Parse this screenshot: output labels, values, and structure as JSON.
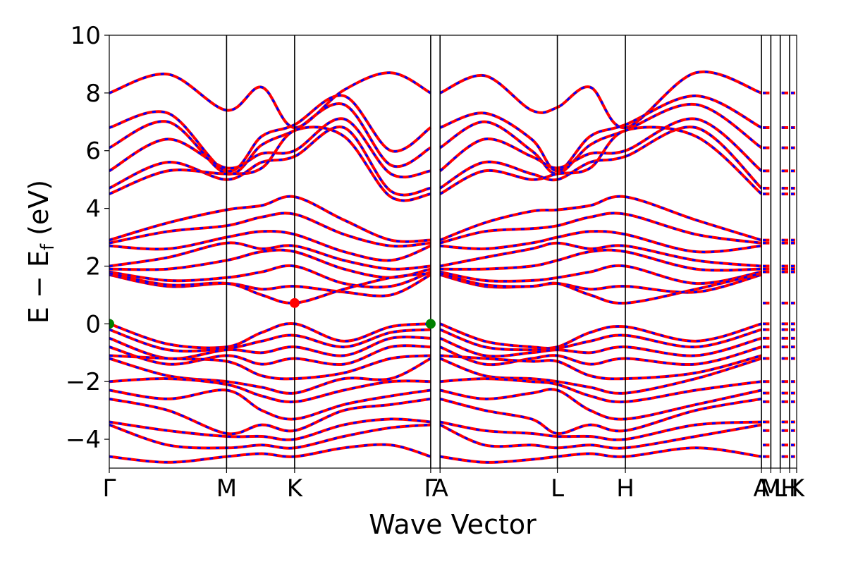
{
  "chart_data": {
    "type": "line",
    "title": "",
    "xlabel": "Wave Vector",
    "ylabel": "E − E",
    "ylabel_sub": "f",
    "ylabel_unit": "(eV)",
    "ylim": [
      -5,
      10
    ],
    "yticks": [
      "−4",
      "−2",
      "0",
      "2",
      "4",
      "6",
      "8",
      "10"
    ],
    "ytick_values": [
      -4,
      -2,
      0,
      2,
      4,
      6,
      8,
      10
    ],
    "k_labels": [
      "Γ",
      "M",
      "K",
      "Γ",
      "A",
      "L",
      "H",
      "A",
      "M",
      "L",
      "H",
      "K"
    ],
    "k_positions": [
      0.0,
      1.0,
      1.58,
      2.74,
      2.82,
      3.82,
      4.4,
      5.56,
      5.64,
      5.72,
      5.8,
      5.86
    ],
    "grid": false,
    "series": [
      {
        "style": "solid",
        "color": "#ff0000"
      },
      {
        "style": "dashed",
        "color": "#0000ff"
      }
    ],
    "markers": [
      {
        "k": 0.0,
        "E": 0.0,
        "color": "#008000"
      },
      {
        "k": 2.74,
        "E": 0.0,
        "color": "#008000"
      },
      {
        "k": 1.58,
        "E": 0.72,
        "color": "#ff0000"
      }
    ],
    "bands": [
      {
        "x": [
          0,
          0.5,
          1.0,
          1.3,
          1.58,
          2.0,
          2.4,
          2.74
        ],
        "y": [
          8.0,
          8.65,
          7.4,
          8.2,
          6.8,
          8.1,
          8.7,
          8.0
        ]
      },
      {
        "x": [
          0,
          0.5,
          1.0,
          1.3,
          1.58,
          2.0,
          2.4,
          2.74
        ],
        "y": [
          6.8,
          7.3,
          5.3,
          6.5,
          6.9,
          7.9,
          6.0,
          6.8
        ]
      },
      {
        "x": [
          0,
          0.5,
          1.0,
          1.3,
          1.58,
          2.0,
          2.4,
          2.74
        ],
        "y": [
          6.1,
          7.0,
          5.2,
          6.2,
          6.7,
          7.6,
          5.5,
          6.1
        ]
      },
      {
        "x": [
          0,
          0.5,
          1.0,
          1.3,
          1.58,
          2.0,
          2.4,
          2.74
        ],
        "y": [
          5.3,
          6.4,
          5.4,
          5.9,
          6.0,
          7.1,
          5.2,
          5.3
        ]
      },
      {
        "x": [
          0,
          0.5,
          1.0,
          1.3,
          1.58,
          2.0,
          2.4,
          2.74
        ],
        "y": [
          4.7,
          5.6,
          5.0,
          5.6,
          5.8,
          6.8,
          4.6,
          4.7
        ]
      },
      {
        "x": [
          0,
          0.5,
          1.0,
          1.3,
          1.58,
          2.0,
          2.4,
          2.74
        ],
        "y": [
          4.5,
          5.3,
          5.2,
          5.4,
          6.7,
          6.5,
          4.4,
          4.5
        ]
      },
      {
        "x": [
          0,
          0.5,
          1.0,
          1.3,
          1.58,
          2.0,
          2.4,
          2.74
        ],
        "y": [
          2.9,
          3.5,
          3.95,
          4.1,
          4.4,
          3.6,
          2.9,
          2.9
        ]
      },
      {
        "x": [
          0,
          0.5,
          1.0,
          1.3,
          1.58,
          2.0,
          2.4,
          2.74
        ],
        "y": [
          2.8,
          3.2,
          3.4,
          3.7,
          3.8,
          3.1,
          2.7,
          2.8
        ]
      },
      {
        "x": [
          0,
          0.5,
          1.0,
          1.3,
          1.58,
          2.0,
          2.4,
          2.74
        ],
        "y": [
          2.7,
          2.6,
          3.0,
          3.2,
          3.1,
          2.5,
          2.2,
          2.7
        ]
      },
      {
        "x": [
          0,
          0.5,
          1.0,
          1.3,
          1.58,
          2.0,
          2.4,
          2.74
        ],
        "y": [
          2.0,
          2.3,
          2.8,
          2.6,
          2.7,
          2.2,
          1.9,
          2.0
        ]
      },
      {
        "x": [
          0,
          0.5,
          1.0,
          1.3,
          1.58,
          2.0,
          2.4,
          2.74
        ],
        "y": [
          1.9,
          1.9,
          2.2,
          2.5,
          2.5,
          1.9,
          1.6,
          1.9
        ]
      },
      {
        "x": [
          0,
          0.5,
          1.0,
          1.3,
          1.58,
          2.0,
          2.4,
          2.74
        ],
        "y": [
          1.8,
          1.5,
          1.6,
          1.8,
          2.0,
          1.4,
          1.3,
          1.8
        ]
      },
      {
        "x": [
          0,
          0.5,
          1.0,
          1.3,
          1.58,
          2.0,
          2.4,
          2.74
        ],
        "y": [
          1.7,
          1.3,
          1.4,
          1.2,
          1.3,
          1.1,
          1.0,
          1.7
        ]
      },
      {
        "x": [
          0,
          0.5,
          1.0,
          1.3,
          1.58,
          2.0,
          2.4,
          2.74
        ],
        "y": [
          1.75,
          1.35,
          1.4,
          1.0,
          0.72,
          1.2,
          1.6,
          1.75
        ]
      },
      {
        "x": [
          0,
          0.5,
          1.0,
          1.3,
          1.58,
          2.0,
          2.4,
          2.74
        ],
        "y": [
          0.0,
          -0.7,
          -0.8,
          -0.3,
          0.0,
          -0.6,
          -0.1,
          0.0
        ]
      },
      {
        "x": [
          0,
          0.5,
          1.0,
          1.3,
          1.58,
          2.0,
          2.4,
          2.74
        ],
        "y": [
          -0.2,
          -0.9,
          -0.85,
          -0.6,
          -0.4,
          -0.8,
          -0.3,
          -0.2
        ]
      },
      {
        "x": [
          0,
          0.5,
          1.0,
          1.3,
          1.58,
          2.0,
          2.4,
          2.74
        ],
        "y": [
          -0.5,
          -1.2,
          -0.9,
          -1.0,
          -0.8,
          -1.1,
          -0.5,
          -0.5
        ]
      },
      {
        "x": [
          0,
          0.5,
          1.0,
          1.3,
          1.58,
          2.0,
          2.4,
          2.74
        ],
        "y": [
          -0.8,
          -1.4,
          -1.1,
          -1.4,
          -1.2,
          -1.4,
          -0.8,
          -0.8
        ]
      },
      {
        "x": [
          0,
          0.5,
          1.0,
          1.3,
          1.58,
          2.0,
          2.4,
          2.74
        ],
        "y": [
          -1.1,
          -1.2,
          -1.3,
          -1.8,
          -1.9,
          -1.7,
          -1.2,
          -1.1
        ]
      },
      {
        "x": [
          0,
          0.5,
          1.0,
          1.3,
          1.58,
          2.0,
          2.4,
          2.74
        ],
        "y": [
          -1.2,
          -1.8,
          -2.0,
          -2.2,
          -2.4,
          -1.9,
          -1.9,
          -1.2
        ]
      },
      {
        "x": [
          0,
          0.5,
          1.0,
          1.3,
          1.58,
          2.0,
          2.4,
          2.74
        ],
        "y": [
          -2.0,
          -1.9,
          -2.1,
          -2.5,
          -2.7,
          -2.3,
          -2.0,
          -2.0
        ]
      },
      {
        "x": [
          0,
          0.5,
          1.0,
          1.3,
          1.58,
          2.0,
          2.4,
          2.74
        ],
        "y": [
          -2.3,
          -2.6,
          -2.3,
          -3.0,
          -3.3,
          -2.8,
          -2.5,
          -2.3
        ]
      },
      {
        "x": [
          0,
          0.5,
          1.0,
          1.3,
          1.58,
          2.0,
          2.4,
          2.74
        ],
        "y": [
          -2.6,
          -3.0,
          -3.8,
          -3.5,
          -3.7,
          -3.0,
          -2.8,
          -2.6
        ]
      },
      {
        "x": [
          0,
          0.5,
          1.0,
          1.3,
          1.58,
          2.0,
          2.4,
          2.74
        ],
        "y": [
          -3.4,
          -3.7,
          -3.9,
          -3.9,
          -4.0,
          -3.5,
          -3.3,
          -3.4
        ]
      },
      {
        "x": [
          0,
          0.5,
          1.0,
          1.3,
          1.58,
          2.0,
          2.4,
          2.74
        ],
        "y": [
          -3.5,
          -4.2,
          -4.3,
          -4.2,
          -4.3,
          -3.9,
          -3.6,
          -3.5
        ]
      },
      {
        "x": [
          0,
          0.5,
          1.0,
          1.3,
          1.58,
          2.0,
          2.4,
          2.74
        ],
        "y": [
          -4.6,
          -4.8,
          -4.6,
          -4.5,
          -4.6,
          -4.3,
          -4.2,
          -4.6
        ]
      },
      {
        "x": [
          2.82,
          3.2,
          3.6,
          3.82,
          4.1,
          4.4,
          5.0,
          5.56
        ],
        "y": [
          8.0,
          8.6,
          7.4,
          7.5,
          8.2,
          6.8,
          8.7,
          8.0
        ]
      },
      {
        "x": [
          2.82,
          3.2,
          3.6,
          3.82,
          4.1,
          4.4,
          5.0,
          5.56
        ],
        "y": [
          6.8,
          7.3,
          6.4,
          5.3,
          6.5,
          6.9,
          7.9,
          6.8
        ]
      },
      {
        "x": [
          2.82,
          3.2,
          3.6,
          3.82,
          4.1,
          4.4,
          5.0,
          5.56
        ],
        "y": [
          6.1,
          7.0,
          6.0,
          5.2,
          6.2,
          6.7,
          7.6,
          6.1
        ]
      },
      {
        "x": [
          2.82,
          3.2,
          3.6,
          3.82,
          4.1,
          4.4,
          5.0,
          5.56
        ],
        "y": [
          5.3,
          6.4,
          5.8,
          5.4,
          5.9,
          6.0,
          7.1,
          5.3
        ]
      },
      {
        "x": [
          2.82,
          3.2,
          3.6,
          3.82,
          4.1,
          4.4,
          5.0,
          5.56
        ],
        "y": [
          4.7,
          5.6,
          5.2,
          5.0,
          5.6,
          5.8,
          6.8,
          4.7
        ]
      },
      {
        "x": [
          2.82,
          3.2,
          3.6,
          3.82,
          4.1,
          4.4,
          5.0,
          5.56
        ],
        "y": [
          4.5,
          5.3,
          5.0,
          5.2,
          5.4,
          6.7,
          6.5,
          4.5
        ]
      },
      {
        "x": [
          2.82,
          3.2,
          3.6,
          3.82,
          4.1,
          4.4,
          5.0,
          5.56
        ],
        "y": [
          2.9,
          3.5,
          3.9,
          3.95,
          4.1,
          4.4,
          3.6,
          2.9
        ]
      },
      {
        "x": [
          2.82,
          3.2,
          3.6,
          3.82,
          4.1,
          4.4,
          5.0,
          5.56
        ],
        "y": [
          2.8,
          3.2,
          3.3,
          3.4,
          3.7,
          3.8,
          3.1,
          2.8
        ]
      },
      {
        "x": [
          2.82,
          3.2,
          3.6,
          3.82,
          4.1,
          4.4,
          5.0,
          5.56
        ],
        "y": [
          2.7,
          2.6,
          2.8,
          3.0,
          3.2,
          3.1,
          2.5,
          2.7
        ]
      },
      {
        "x": [
          2.82,
          3.2,
          3.6,
          3.82,
          4.1,
          4.4,
          5.0,
          5.56
        ],
        "y": [
          2.0,
          2.3,
          2.6,
          2.8,
          2.6,
          2.7,
          2.2,
          2.0
        ]
      },
      {
        "x": [
          2.82,
          3.2,
          3.6,
          3.82,
          4.1,
          4.4,
          5.0,
          5.56
        ],
        "y": [
          1.9,
          1.9,
          2.0,
          2.2,
          2.5,
          2.5,
          1.9,
          1.9
        ]
      },
      {
        "x": [
          2.82,
          3.2,
          3.6,
          3.82,
          4.1,
          4.4,
          5.0,
          5.56
        ],
        "y": [
          1.8,
          1.5,
          1.5,
          1.6,
          1.8,
          2.0,
          1.4,
          1.8
        ]
      },
      {
        "x": [
          2.82,
          3.2,
          3.6,
          3.82,
          4.1,
          4.4,
          5.0,
          5.56
        ],
        "y": [
          1.7,
          1.3,
          1.3,
          1.4,
          1.2,
          1.3,
          1.1,
          1.7
        ]
      },
      {
        "x": [
          2.82,
          3.2,
          3.6,
          3.82,
          4.1,
          4.4,
          5.0,
          5.56
        ],
        "y": [
          1.75,
          1.35,
          1.3,
          1.4,
          1.0,
          0.72,
          1.2,
          1.75
        ]
      },
      {
        "x": [
          2.82,
          3.2,
          3.6,
          3.82,
          4.1,
          4.4,
          5.0,
          5.56
        ],
        "y": [
          0.0,
          -0.6,
          -0.8,
          -0.8,
          -0.3,
          -0.1,
          -0.6,
          0.0
        ]
      },
      {
        "x": [
          2.82,
          3.2,
          3.6,
          3.82,
          4.1,
          4.4,
          5.0,
          5.56
        ],
        "y": [
          -0.2,
          -0.8,
          -0.9,
          -0.85,
          -0.6,
          -0.4,
          -0.8,
          -0.2
        ]
      },
      {
        "x": [
          2.82,
          3.2,
          3.6,
          3.82,
          4.1,
          4.4,
          5.0,
          5.56
        ],
        "y": [
          -0.5,
          -1.1,
          -1.0,
          -0.9,
          -1.0,
          -0.8,
          -1.1,
          -0.5
        ]
      },
      {
        "x": [
          2.82,
          3.2,
          3.6,
          3.82,
          4.1,
          4.4,
          5.0,
          5.56
        ],
        "y": [
          -0.8,
          -1.4,
          -1.2,
          -1.1,
          -1.4,
          -1.2,
          -1.4,
          -0.8
        ]
      },
      {
        "x": [
          2.82,
          3.2,
          3.6,
          3.82,
          4.1,
          4.4,
          5.0,
          5.56
        ],
        "y": [
          -1.1,
          -1.2,
          -1.3,
          -1.3,
          -1.8,
          -1.9,
          -1.7,
          -1.1
        ]
      },
      {
        "x": [
          2.82,
          3.2,
          3.6,
          3.82,
          4.1,
          4.4,
          5.0,
          5.56
        ],
        "y": [
          -1.2,
          -1.8,
          -1.9,
          -2.0,
          -2.2,
          -2.4,
          -1.9,
          -1.2
        ]
      },
      {
        "x": [
          2.82,
          3.2,
          3.6,
          3.82,
          4.1,
          4.4,
          5.0,
          5.56
        ],
        "y": [
          -2.0,
          -1.9,
          -2.0,
          -2.1,
          -2.5,
          -2.7,
          -2.3,
          -2.0
        ]
      },
      {
        "x": [
          2.82,
          3.2,
          3.6,
          3.82,
          4.1,
          4.4,
          5.0,
          5.56
        ],
        "y": [
          -2.3,
          -2.6,
          -2.4,
          -2.3,
          -3.0,
          -3.3,
          -2.8,
          -2.3
        ]
      },
      {
        "x": [
          2.82,
          3.2,
          3.6,
          3.82,
          4.1,
          4.4,
          5.0,
          5.56
        ],
        "y": [
          -2.6,
          -3.0,
          -3.3,
          -3.8,
          -3.5,
          -3.7,
          -3.0,
          -2.6
        ]
      },
      {
        "x": [
          2.82,
          3.2,
          3.6,
          3.82,
          4.1,
          4.4,
          5.0,
          5.56
        ],
        "y": [
          -3.4,
          -3.7,
          -3.8,
          -3.9,
          -3.9,
          -4.0,
          -3.5,
          -3.4
        ]
      },
      {
        "x": [
          2.82,
          3.2,
          3.6,
          3.82,
          4.1,
          4.4,
          5.0,
          5.56
        ],
        "y": [
          -3.5,
          -4.2,
          -4.2,
          -4.3,
          -4.2,
          -4.3,
          -3.9,
          -3.5
        ]
      },
      {
        "x": [
          2.82,
          3.2,
          3.6,
          3.82,
          4.1,
          4.4,
          5.0,
          5.56
        ],
        "y": [
          -4.6,
          -4.8,
          -4.7,
          -4.6,
          -4.5,
          -4.6,
          -4.3,
          -4.6
        ]
      }
    ],
    "flat_levels": [
      8.0,
      6.8,
      6.1,
      5.3,
      4.7,
      4.5,
      2.9,
      2.8,
      2.0,
      1.9,
      1.8,
      0.72,
      0.0,
      -0.2,
      -0.5,
      -0.8,
      -1.2,
      -2.0,
      -2.4,
      -2.7,
      -3.4,
      -3.7,
      -4.2,
      -4.6
    ]
  }
}
